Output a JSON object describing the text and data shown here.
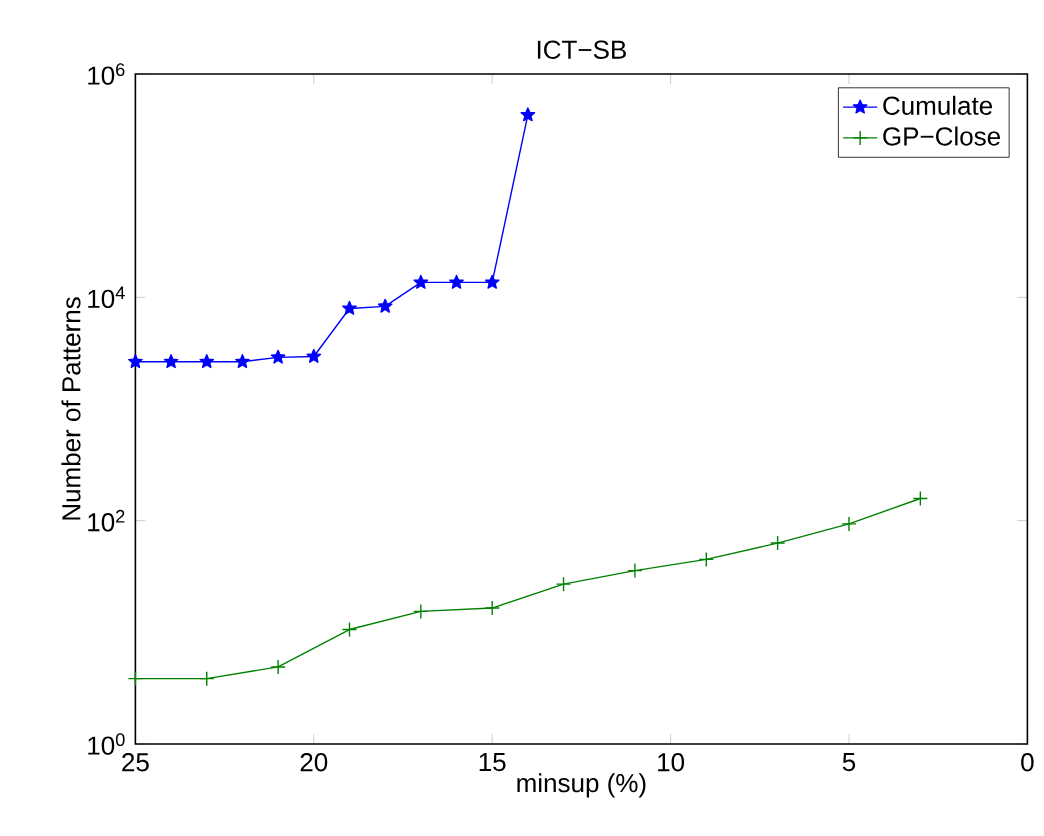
{
  "chart_data": {
    "type": "line",
    "title": "ICT−SB",
    "xlabel": "minsup (%)",
    "ylabel": "Number of Patterns",
    "log": "y",
    "xlim": [
      25,
      0
    ],
    "xticks": [
      0,
      5,
      10,
      15,
      20,
      25
    ],
    "ylim": [
      1,
      1000000
    ],
    "yticks": [
      {
        "value": 1,
        "label": "10$^{0}$"
      },
      {
        "value": 100,
        "label": "10$^{2}$"
      },
      {
        "value": 10000,
        "label": "10$^{4}$"
      },
      {
        "value": 1000000,
        "label": "10$^{6}$"
      }
    ],
    "grid": false,
    "legend": "top right",
    "line_style": "solid",
    "series": [
      {
        "name": "Cumulate",
        "color": "#0000ff",
        "marker": "star",
        "x": [
          25,
          24,
          23,
          22,
          21,
          20,
          19,
          18,
          17,
          16,
          15,
          14
        ],
        "values": [
          2650,
          2650,
          2650,
          2650,
          2900,
          2950,
          7950,
          8300,
          13600,
          13600,
          13600,
          430000
        ]
      },
      {
        "name": "GP−Close",
        "color": "#008000",
        "marker": "cross",
        "x": [
          25,
          23,
          21,
          19,
          17,
          15,
          13,
          11,
          9,
          7,
          5,
          3
        ],
        "values": [
          3.85,
          3.85,
          4.9,
          10.6,
          15.4,
          16.5,
          27,
          35.7,
          45,
          63,
          93.5,
          158
        ]
      }
    ]
  }
}
